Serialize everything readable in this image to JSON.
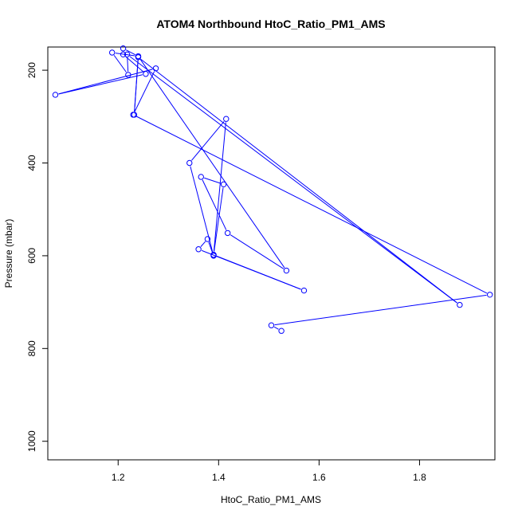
{
  "chart_data": {
    "type": "line",
    "title": "ATOM4 Northbound HtoC_Ratio_PM1_AMS",
    "xlabel": "HtoC_Ratio_PM1_AMS",
    "ylabel": "Pressure (mbar)",
    "xlim": [
      1.06,
      1.95
    ],
    "ylim": [
      1040,
      150
    ],
    "y_reversed": true,
    "x_ticks": [
      1.2,
      1.4,
      1.6,
      1.8
    ],
    "y_ticks": [
      200,
      400,
      600,
      800,
      1000
    ],
    "x_tick_labels": [
      "1.2",
      "1.4",
      "1.6",
      "1.8"
    ],
    "y_tick_labels": [
      "200",
      "400",
      "600",
      "800",
      "1000"
    ],
    "grid": false,
    "legend": "none",
    "series": [
      {
        "color": "#0000ff",
        "marker": "open-circle",
        "points": [
          {
            "x": 1.525,
            "y": 762
          },
          {
            "x": 1.505,
            "y": 750
          },
          {
            "x": 1.94,
            "y": 684
          },
          {
            "x": 1.23,
            "y": 296
          },
          {
            "x": 1.275,
            "y": 196
          },
          {
            "x": 1.075,
            "y": 253
          },
          {
            "x": 1.255,
            "y": 208
          },
          {
            "x": 1.21,
            "y": 166
          },
          {
            "x": 1.21,
            "y": 153
          },
          {
            "x": 1.24,
            "y": 170
          },
          {
            "x": 1.188,
            "y": 162
          },
          {
            "x": 1.22,
            "y": 210
          },
          {
            "x": 1.218,
            "y": 166
          },
          {
            "x": 1.88,
            "y": 706
          },
          {
            "x": 1.24,
            "y": 172
          },
          {
            "x": 1.232,
            "y": 296
          },
          {
            "x": 1.24,
            "y": 170
          },
          {
            "x": 1.535,
            "y": 632
          },
          {
            "x": 1.418,
            "y": 551
          },
          {
            "x": 1.365,
            "y": 430
          },
          {
            "x": 1.41,
            "y": 446
          },
          {
            "x": 1.39,
            "y": 598
          },
          {
            "x": 1.415,
            "y": 305
          },
          {
            "x": 1.342,
            "y": 400
          },
          {
            "x": 1.39,
            "y": 600
          },
          {
            "x": 1.378,
            "y": 564
          },
          {
            "x": 1.36,
            "y": 586
          },
          {
            "x": 1.57,
            "y": 675
          },
          {
            "x": 1.39,
            "y": 598
          }
        ]
      }
    ]
  }
}
